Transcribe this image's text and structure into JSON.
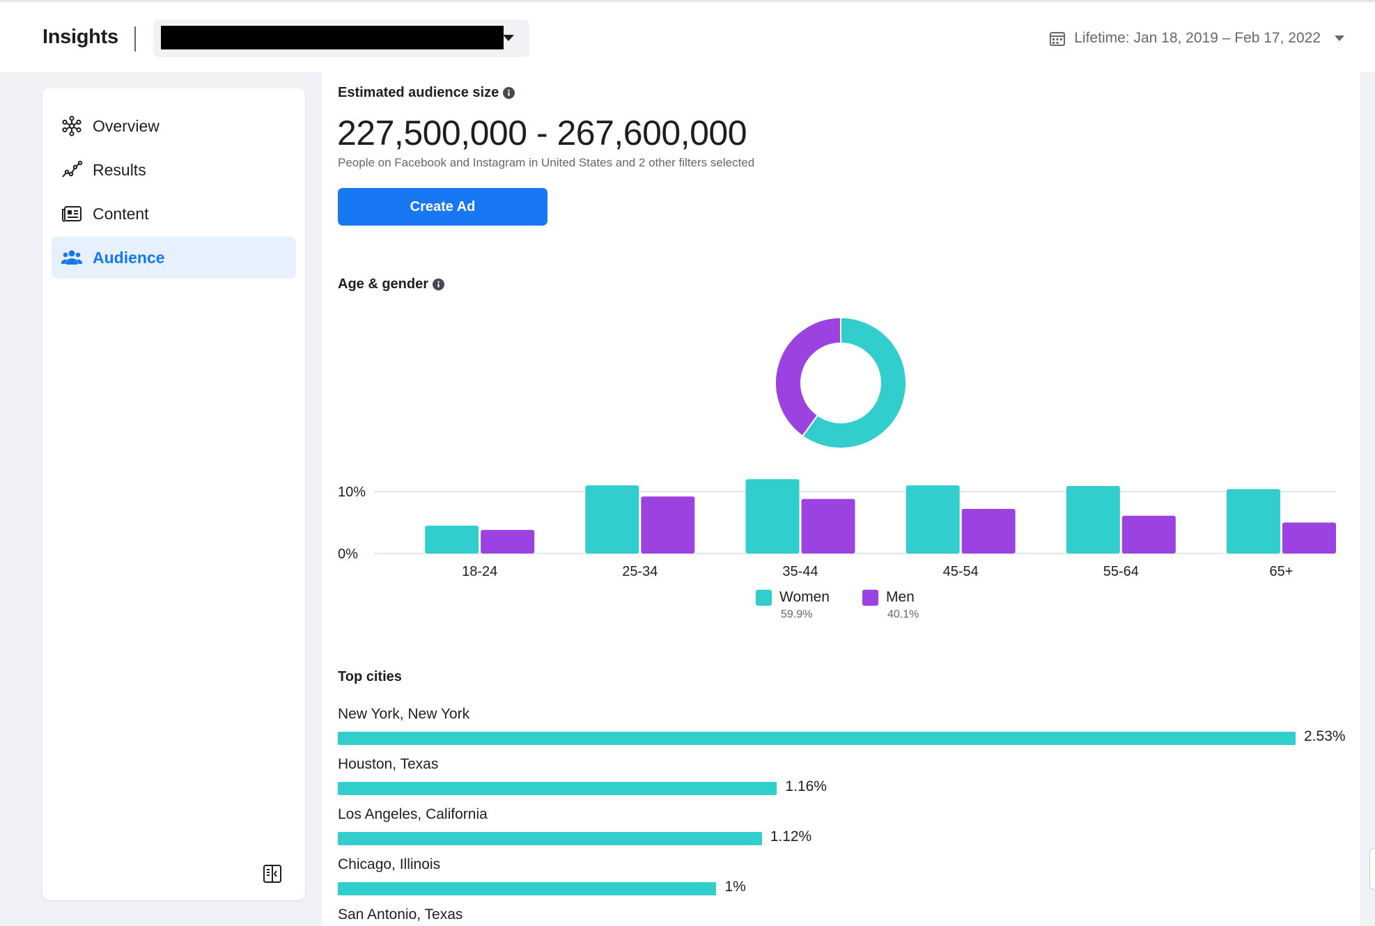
{
  "header": {
    "title": "Insights",
    "account_selector": {
      "value": ""
    },
    "date_range": {
      "label": "Lifetime: Jan 18, 2019 – Feb 17, 2022",
      "icon": "calendar-icon"
    }
  },
  "sidebar": {
    "items": [
      {
        "label": "Overview",
        "icon": "overview-icon",
        "active": false
      },
      {
        "label": "Results",
        "icon": "results-icon",
        "active": false
      },
      {
        "label": "Content",
        "icon": "content-icon",
        "active": false
      },
      {
        "label": "Audience",
        "icon": "audience-icon",
        "active": true
      }
    ],
    "collapse_icon": "collapse-sidebar-icon"
  },
  "audience": {
    "size_title": "Estimated audience size",
    "size_value": "227,500,000 - 267,600,000",
    "size_description": "People on Facebook and Instagram in United States and 2 other filters selected",
    "create_ad_label": "Create Ad"
  },
  "age_gender": {
    "title": "Age & gender",
    "legend": [
      {
        "name": "Women",
        "percent": "59.9%"
      },
      {
        "name": "Men",
        "percent": "40.1%"
      }
    ]
  },
  "colors": {
    "women": "#32cdcd",
    "men": "#9b42e0",
    "accent": "#1877f2"
  },
  "chart_data": [
    {
      "type": "pie",
      "donut": true,
      "labels": [
        "Women",
        "Men"
      ],
      "values": [
        59.9,
        40.1
      ]
    },
    {
      "type": "bar",
      "categories": [
        "18-24",
        "25-34",
        "35-44",
        "45-54",
        "55-64",
        "65+"
      ],
      "series": [
        {
          "name": "Women",
          "values": [
            4.5,
            11.0,
            12.0,
            11.0,
            10.9,
            10.4
          ]
        },
        {
          "name": "Men",
          "values": [
            3.8,
            9.2,
            8.8,
            7.2,
            6.1,
            5.0
          ]
        }
      ],
      "yticks": [
        "0%",
        "10%"
      ],
      "ylim": [
        0,
        12
      ],
      "grid": true,
      "legend": "bottom"
    }
  ],
  "top_cities": {
    "title": "Top cities",
    "items": [
      {
        "name": "New York, New York",
        "label": "2.53%",
        "value": 2.53
      },
      {
        "name": "Houston, Texas",
        "label": "1.16%",
        "value": 1.16
      },
      {
        "name": "Los Angeles, California",
        "label": "1.12%",
        "value": 1.12
      },
      {
        "name": "Chicago, Illinois",
        "label": "1%",
        "value": 1.0
      },
      {
        "name": "San Antonio, Texas",
        "label": "",
        "value": null
      }
    ]
  }
}
